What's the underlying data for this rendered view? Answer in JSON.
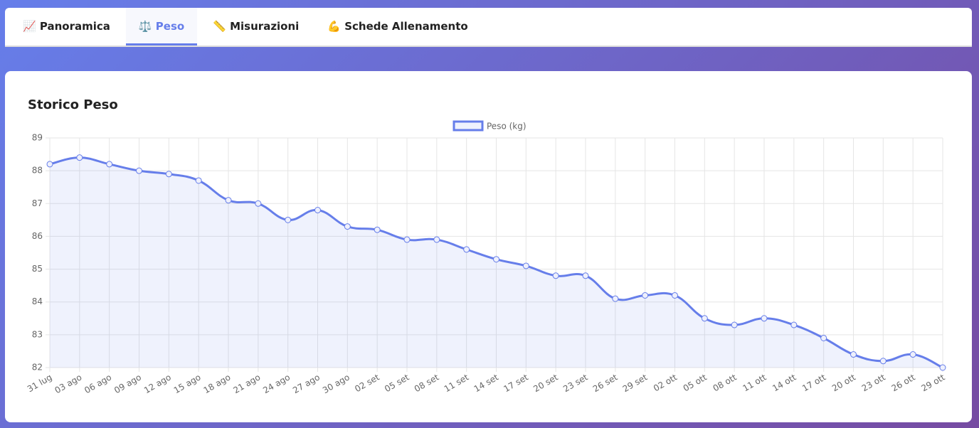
{
  "tabs": [
    "📈 Panoramica",
    "⚖️ Peso",
    "📏 Misurazioni",
    "💪 Schede Allenamento"
  ],
  "chart_data": {
    "type": "line",
    "title": "Storico Peso",
    "categories": [
      "31 lug",
      "03 ago",
      "06 ago",
      "09 ago",
      "12 ago",
      "15 ago",
      "18 ago",
      "21 ago",
      "24 ago",
      "27 ago",
      "30 ago",
      "02 set",
      "05 set",
      "08 set",
      "11 set",
      "14 set",
      "17 set",
      "20 set",
      "23 set",
      "26 set",
      "29 set",
      "02 ott",
      "05 ott",
      "08 ott",
      "11 ott",
      "14 ott",
      "17 ott",
      "20 ott",
      "23 ott",
      "26 ott",
      "29 ott"
    ],
    "series": [
      {
        "name": "Peso (kg)",
        "color": "#667eea",
        "values": [
          88.2,
          88.4,
          88.2,
          88.0,
          87.9,
          87.7,
          87.1,
          87.0,
          86.5,
          86.8,
          86.3,
          86.2,
          85.9,
          85.9,
          85.6,
          85.3,
          85.1,
          84.8,
          84.8,
          84.1,
          84.2,
          84.2,
          83.5,
          83.3,
          83.5,
          83.3,
          82.9,
          82.4,
          82.2,
          82.4,
          82.0
        ]
      }
    ],
    "ylim": [
      82,
      89
    ],
    "yticks": [
      82,
      83,
      84,
      85,
      86,
      87,
      88,
      89
    ],
    "grid": true,
    "fill": true
  }
}
